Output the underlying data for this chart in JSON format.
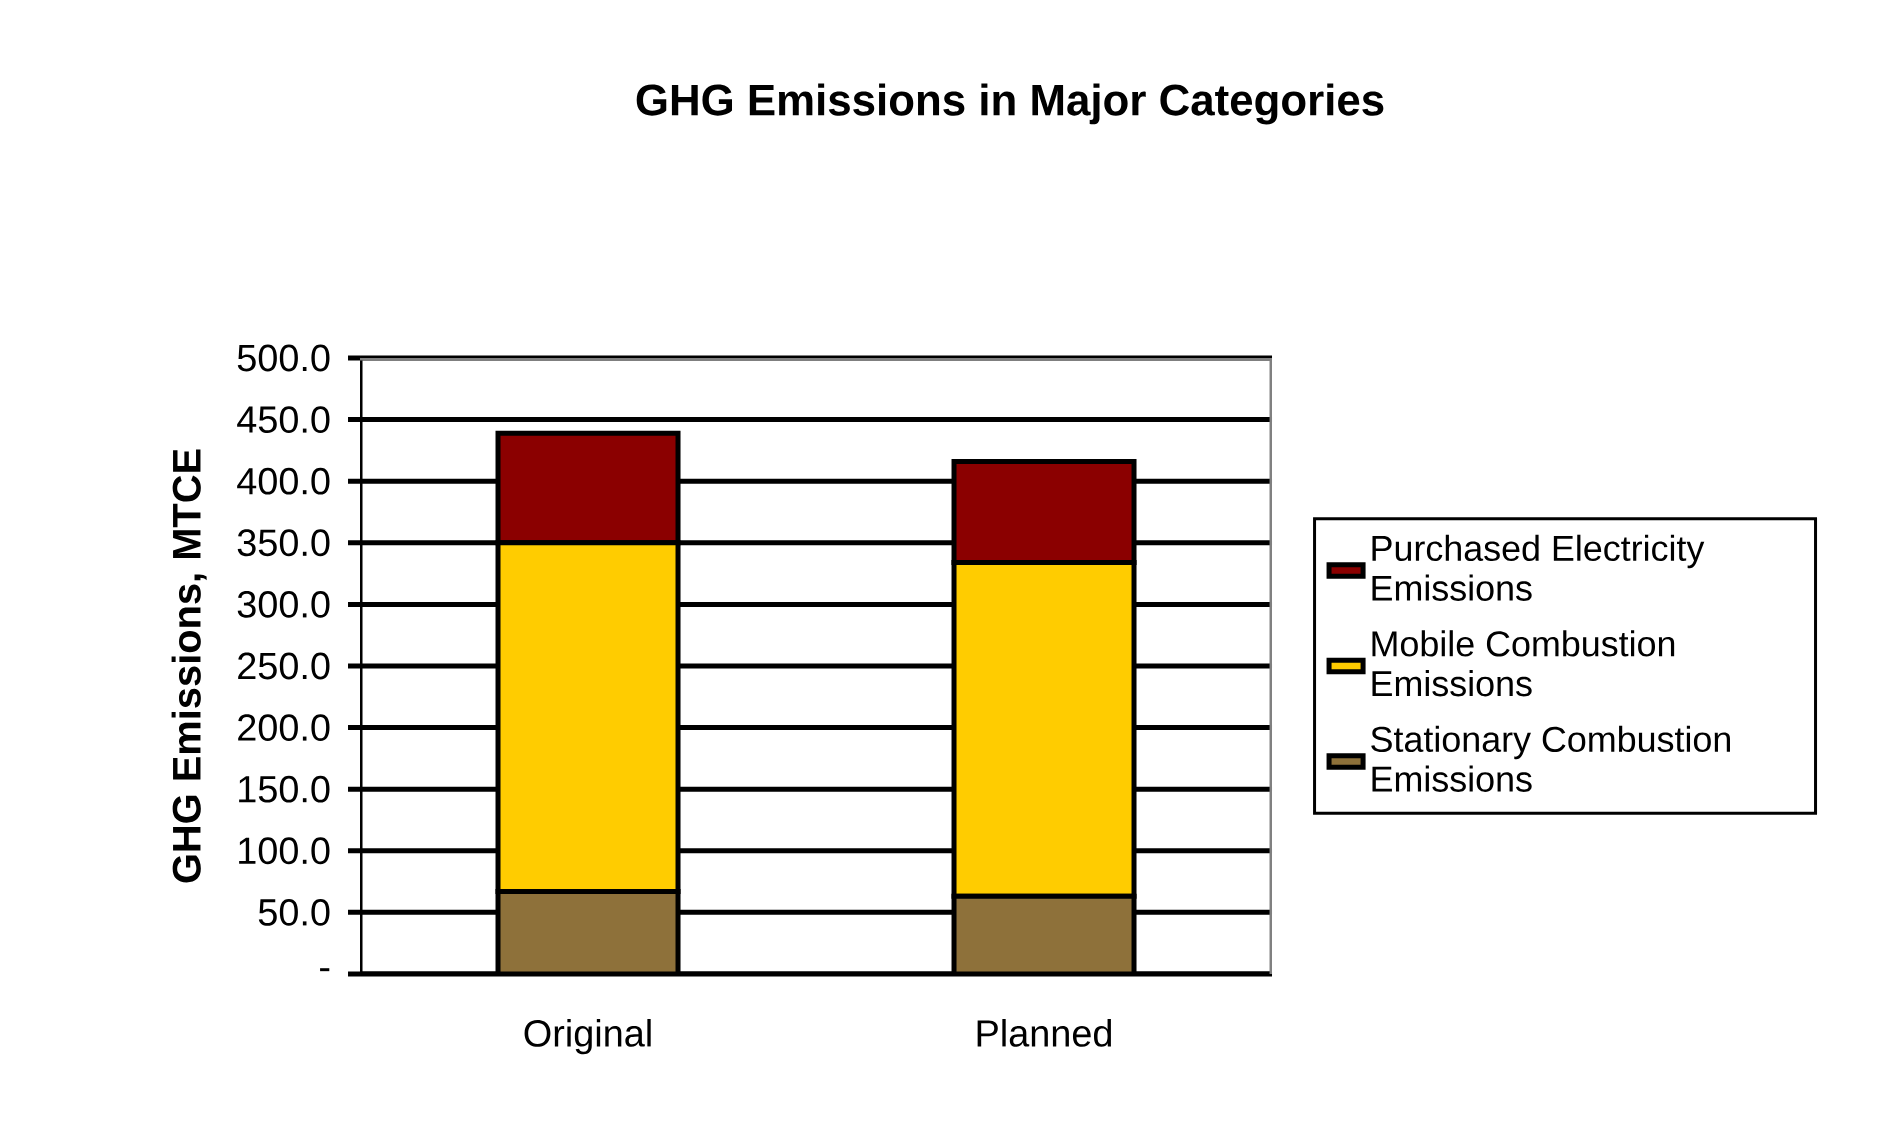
{
  "chart_data": {
    "type": "bar",
    "stacked": true,
    "title": "GHG Emissions  in Major Categories",
    "ylabel": "GHG Emissions, MTCE",
    "categories": [
      "Original",
      "Planned"
    ],
    "series": [
      {
        "name": "Stationary Combustion Emissions",
        "color": "#8e713a",
        "values": [
          67,
          63
        ]
      },
      {
        "name": "Mobile Combustion Emissions",
        "color": "#ffcc00",
        "values": [
          283,
          271
        ]
      },
      {
        "name": "Purchased Electricity Emissions",
        "color": "#8b0000",
        "values": [
          89,
          82
        ]
      }
    ],
    "ylim": [
      0,
      500
    ],
    "yticks": [
      {
        "value": 0,
        "label": "-"
      },
      {
        "value": 50,
        "label": "50.0"
      },
      {
        "value": 100,
        "label": "100.0"
      },
      {
        "value": 150,
        "label": "150.0"
      },
      {
        "value": 200,
        "label": "200.0"
      },
      {
        "value": 250,
        "label": "250.0"
      },
      {
        "value": 300,
        "label": "300.0"
      },
      {
        "value": 350,
        "label": "350.0"
      },
      {
        "value": 400,
        "label": "400.0"
      },
      {
        "value": 450,
        "label": "450.0"
      },
      {
        "value": 500,
        "label": "500.0"
      }
    ],
    "grid": "y",
    "legend": "right"
  }
}
